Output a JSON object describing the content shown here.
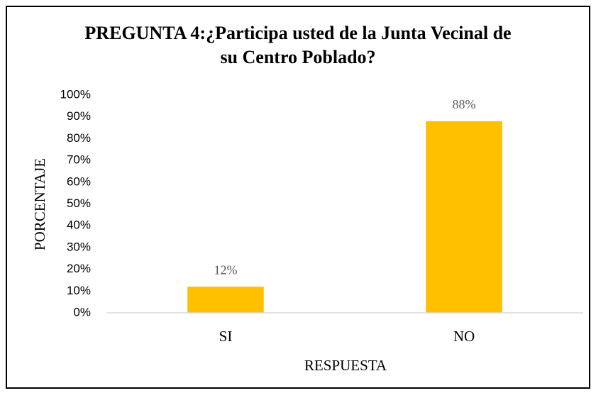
{
  "chart_data": {
    "type": "bar",
    "title": "PREGUNTA 4:¿Participa usted de la Junta Vecinal de su Centro Poblado?",
    "x_label": "RESPUESTA",
    "y_label": "PORCENTAJE",
    "categories": [
      "SI",
      "NO"
    ],
    "values": [
      12,
      88
    ],
    "value_labels": [
      "12%",
      "88%"
    ],
    "color": "#ffc000",
    "ylim": [
      0,
      100
    ],
    "yticks": [
      {
        "value": 0,
        "label": "0%"
      },
      {
        "value": 10,
        "label": "10%"
      },
      {
        "value": 20,
        "label": "20%"
      },
      {
        "value": 30,
        "label": "30%"
      },
      {
        "value": 40,
        "label": "40%"
      },
      {
        "value": 50,
        "label": "50%"
      },
      {
        "value": 60,
        "label": "60%"
      },
      {
        "value": 70,
        "label": "70%"
      },
      {
        "value": 80,
        "label": "80%"
      },
      {
        "value": 90,
        "label": "90%"
      },
      {
        "value": 100,
        "label": "100%"
      }
    ],
    "grid": false
  }
}
